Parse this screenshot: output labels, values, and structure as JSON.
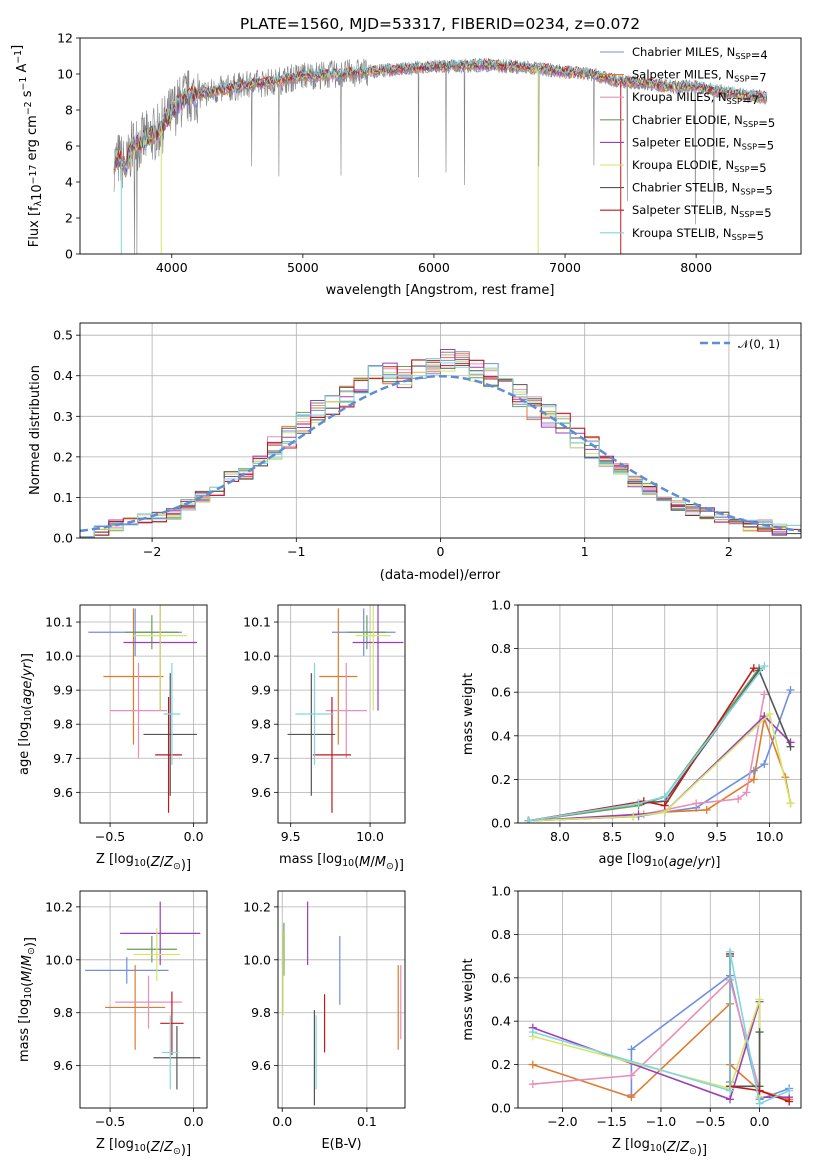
{
  "title": "PLATE=1560, MJD=53317, FIBERID=0234, z=0.072",
  "colors": {
    "Chabrier MILES": "#6f8fe0",
    "Salpeter MILES": "#e07b2d",
    "Kroupa MILES": "#e88fb8",
    "Chabrier ELODIE": "#6a9e5a",
    "Salpeter ELODIE": "#9b3fb8",
    "Kroupa ELODIE": "#d3e66b",
    "Chabrier STELIB": "#555555",
    "Salpeter STELIB": "#c0181c",
    "Kroupa STELIB": "#7fd6df",
    "data": "#808080",
    "normal": "#5b8ed6"
  },
  "chart_data": [
    {
      "type": "line",
      "title": "PLATE=1560, MJD=53317, FIBERID=0234, z=0.072",
      "xlabel": "wavelength [Angstrom, rest frame]",
      "ylabel": "Flux [f$_\\lambda$10$^{-17}$ erg cm$^{-2}$ s$^{-1}$ A$^{-1}$]",
      "xlim": [
        3300,
        8800
      ],
      "ylim": [
        0,
        12
      ],
      "xticks": [
        "4000",
        "5000",
        "6000",
        "7000",
        "8000"
      ],
      "yticks": [
        "0",
        "2",
        "4",
        "6",
        "8",
        "10",
        "12"
      ],
      "legend_placement": "top-right",
      "legend": [
        "Chabrier MILES, N_SSP=4",
        "Salpeter MILES, N_SSP=7",
        "Kroupa MILES, N_SSP=7",
        "Chabrier ELODIE, N_SSP=5",
        "Salpeter ELODIE, N_SSP=5",
        "Kroupa ELODIE, N_SSP=5",
        "Chabrier STELIB, N_SSP=5",
        "Salpeter STELIB, N_SSP=5",
        "Kroupa STELIB, N_SSP=5"
      ],
      "continuum": {
        "x": [
          3550,
          3600,
          3650,
          3700,
          3800,
          3900,
          4000,
          4100,
          4300,
          4500,
          4800,
          5000,
          5300,
          5600,
          6000,
          6400,
          6800,
          7000,
          7200,
          7400,
          7600,
          7800,
          8000,
          8200,
          8500
        ],
        "y": [
          5.0,
          5.3,
          4.8,
          6.0,
          6.4,
          6.8,
          7.9,
          8.7,
          9.0,
          9.3,
          9.6,
          9.9,
          10.0,
          10.2,
          10.4,
          10.5,
          10.3,
          10.1,
          10.0,
          9.6,
          9.5,
          9.3,
          9.3,
          9.0,
          8.7
        ]
      }
    },
    {
      "type": "bar",
      "xlabel": "(data-model)/error",
      "ylabel": "Normed distribution",
      "xlim": [
        -2.5,
        2.5
      ],
      "ylim": [
        0,
        0.53
      ],
      "xticks": [
        "−2",
        "−1",
        "0",
        "1",
        "2"
      ],
      "yticks": [
        "0.0",
        "0.1",
        "0.2",
        "0.3",
        "0.4",
        "0.5"
      ],
      "legend_placement": "top-right",
      "legend": [
        "N(0,1)"
      ],
      "bin_width": 0.1,
      "bin_start": -2.5,
      "mean_distribution": [
        0.01,
        0.02,
        0.03,
        0.04,
        0.05,
        0.05,
        0.06,
        0.08,
        0.1,
        0.12,
        0.15,
        0.16,
        0.19,
        0.22,
        0.25,
        0.28,
        0.31,
        0.33,
        0.35,
        0.37,
        0.41,
        0.41,
        0.4,
        0.41,
        0.43,
        0.44,
        0.43,
        0.41,
        0.4,
        0.38,
        0.35,
        0.32,
        0.3,
        0.28,
        0.25,
        0.22,
        0.19,
        0.17,
        0.14,
        0.12,
        0.1,
        0.08,
        0.07,
        0.06,
        0.05,
        0.04,
        0.03,
        0.03,
        0.02,
        0.02
      ]
    },
    {
      "type": "scatter",
      "xlabel": "Z [log$_{10}$(Z/Z$_\\odot$)]",
      "ylabel": "age  [log$_{10}$(age/yr)]",
      "xlim": [
        -0.68,
        0.08
      ],
      "ylim": [
        9.51,
        10.15
      ],
      "xticks": [
        "−0.5",
        "0.0"
      ],
      "yticks": [
        "9.6",
        "9.7",
        "9.8",
        "9.9",
        "10.0",
        "10.1"
      ],
      "points": [
        {
          "name": "Chabrier MILES",
          "x": -0.35,
          "y": 10.07,
          "xerr": 0.28,
          "yerr": 0.07
        },
        {
          "name": "Salpeter MILES",
          "x": -0.36,
          "y": 9.94,
          "xerr": 0.18,
          "yerr": 0.2
        },
        {
          "name": "Kroupa MILES",
          "x": -0.33,
          "y": 9.84,
          "xerr": 0.17,
          "yerr": 0.14
        },
        {
          "name": "Chabrier ELODIE",
          "x": -0.25,
          "y": 10.07,
          "xerr": 0.16,
          "yerr": 0.05
        },
        {
          "name": "Salpeter ELODIE",
          "x": -0.2,
          "y": 10.04,
          "xerr": 0.22,
          "yerr": 0.2
        },
        {
          "name": "Kroupa ELODIE",
          "x": -0.2,
          "y": 10.06,
          "xerr": 0.16,
          "yerr": 0.22
        },
        {
          "name": "Chabrier STELIB",
          "x": -0.14,
          "y": 9.77,
          "xerr": 0.16,
          "yerr": 0.18
        },
        {
          "name": "Salpeter STELIB",
          "x": -0.15,
          "y": 9.71,
          "xerr": 0.08,
          "yerr": 0.17
        },
        {
          "name": "Kroupa STELIB",
          "x": -0.13,
          "y": 9.83,
          "xerr": 0.05,
          "yerr": 0.15
        }
      ]
    },
    {
      "type": "scatter",
      "xlabel": "mass [log$_{10}$(M/M$_\\odot$)]",
      "xlim": [
        9.42,
        10.22
      ],
      "ylim": [
        9.51,
        10.15
      ],
      "xticks": [
        "9.5",
        "10.0"
      ],
      "yticks": [
        "9.6",
        "9.7",
        "9.8",
        "9.9",
        "10.0",
        "10.1"
      ],
      "points": [
        {
          "name": "Chabrier MILES",
          "x": 9.96,
          "y": 10.07,
          "xerr": 0.2,
          "yerr": 0.07
        },
        {
          "name": "Salpeter MILES",
          "x": 9.8,
          "y": 9.94,
          "xerr": 0.12,
          "yerr": 0.2
        },
        {
          "name": "Kroupa MILES",
          "x": 9.85,
          "y": 9.84,
          "xerr": 0.13,
          "yerr": 0.14
        },
        {
          "name": "Chabrier ELODIE",
          "x": 9.98,
          "y": 10.07,
          "xerr": 0.12,
          "yerr": 0.05
        },
        {
          "name": "Salpeter ELODIE",
          "x": 10.05,
          "y": 10.04,
          "xerr": 0.16,
          "yerr": 0.2
        },
        {
          "name": "Kroupa ELODIE",
          "x": 10.02,
          "y": 10.06,
          "xerr": 0.11,
          "yerr": 0.22
        },
        {
          "name": "Chabrier STELIB",
          "x": 9.63,
          "y": 9.77,
          "xerr": 0.15,
          "yerr": 0.18
        },
        {
          "name": "Salpeter STELIB",
          "x": 9.76,
          "y": 9.71,
          "xerr": 0.12,
          "yerr": 0.17
        },
        {
          "name": "Kroupa STELIB",
          "x": 9.65,
          "y": 9.83,
          "xerr": 0.12,
          "yerr": 0.15
        }
      ]
    },
    {
      "type": "line",
      "xlabel": "age  [log$_{10}$(age/yr)]",
      "ylabel": "mass weight",
      "xlim": [
        7.6,
        10.3
      ],
      "ylim": [
        0,
        1
      ],
      "xticks": [
        "8.0",
        "8.5",
        "9.0",
        "9.5",
        "10.0"
      ],
      "yticks": [
        "0.0",
        "0.2",
        "0.4",
        "0.6",
        "0.8",
        "1.0"
      ],
      "series": [
        {
          "name": "Chabrier MILES",
          "x": [
            7.7,
            8.75,
            9.0,
            9.3,
            9.85,
            9.95,
            10.2
          ],
          "y": [
            0.01,
            0.03,
            0.05,
            0.07,
            0.24,
            0.27,
            0.61
          ]
        },
        {
          "name": "Salpeter MILES",
          "x": [
            7.7,
            8.7,
            9.0,
            9.4,
            9.85,
            9.95,
            10.15,
            10.2
          ],
          "y": [
            0.01,
            0.03,
            0.05,
            0.06,
            0.2,
            0.48,
            0.21,
            0.09
          ]
        },
        {
          "name": "Kroupa MILES",
          "x": [
            7.7,
            8.8,
            9.3,
            9.7,
            9.78,
            9.95
          ],
          "y": [
            0.01,
            0.04,
            0.09,
            0.11,
            0.14,
            0.59
          ]
        },
        {
          "name": "Chabrier ELODIE",
          "x": [
            7.7,
            8.75,
            9.0,
            9.9
          ],
          "y": [
            0.01,
            0.08,
            0.12,
            0.71
          ]
        },
        {
          "name": "Salpeter ELODIE",
          "x": [
            7.7,
            8.75,
            9.0,
            9.95,
            10.2
          ],
          "y": [
            0.01,
            0.04,
            0.05,
            0.49,
            0.37
          ]
        },
        {
          "name": "Kroupa ELODIE",
          "x": [
            7.7,
            8.7,
            9.0,
            10.0,
            10.2
          ],
          "y": [
            0.01,
            0.03,
            0.05,
            0.5,
            0.09
          ]
        },
        {
          "name": "Chabrier STELIB",
          "x": [
            7.7,
            8.75,
            9.0,
            9.9,
            10.2
          ],
          "y": [
            0.01,
            0.09,
            0.1,
            0.7,
            0.35
          ]
        },
        {
          "name": "Salpeter STELIB",
          "x": [
            7.7,
            8.8,
            9.0,
            9.85
          ],
          "y": [
            0.01,
            0.1,
            0.08,
            0.71
          ]
        },
        {
          "name": "Kroupa STELIB",
          "x": [
            7.7,
            8.75,
            9.0,
            9.95
          ],
          "y": [
            0.01,
            0.09,
            0.12,
            0.72
          ]
        }
      ]
    },
    {
      "type": "scatter",
      "xlabel": "Z [log$_{10}$(Z/Z$_\\odot$)]",
      "ylabel": "mass [log$_{10}$(M/M$_\\odot$)]",
      "xlim": [
        -0.68,
        0.08
      ],
      "ylim": [
        9.44,
        10.26
      ],
      "xticks": [
        "−0.5",
        "0.0"
      ],
      "yticks": [
        "9.6",
        "9.8",
        "10.0",
        "10.2"
      ],
      "points": [
        {
          "name": "Chabrier MILES",
          "x": -0.4,
          "y": 9.96,
          "xerr": 0.25,
          "yerr": 0.05
        },
        {
          "name": "Salpeter MILES",
          "x": -0.35,
          "y": 9.82,
          "xerr": 0.18,
          "yerr": 0.16
        },
        {
          "name": "Kroupa MILES",
          "x": -0.27,
          "y": 9.84,
          "xerr": 0.2,
          "yerr": 0.1
        },
        {
          "name": "Chabrier ELODIE",
          "x": -0.25,
          "y": 10.04,
          "xerr": 0.15,
          "yerr": 0.05
        },
        {
          "name": "Salpeter ELODIE",
          "x": -0.2,
          "y": 10.1,
          "xerr": 0.24,
          "yerr": 0.12
        },
        {
          "name": "Kroupa ELODIE",
          "x": -0.22,
          "y": 10.02,
          "xerr": 0.14,
          "yerr": 0.1
        },
        {
          "name": "Chabrier STELIB",
          "x": -0.1,
          "y": 9.63,
          "xerr": 0.14,
          "yerr": 0.12
        },
        {
          "name": "Salpeter STELIB",
          "x": -0.13,
          "y": 9.76,
          "xerr": 0.07,
          "yerr": 0.12
        },
        {
          "name": "Kroupa STELIB",
          "x": -0.14,
          "y": 9.65,
          "xerr": 0.05,
          "yerr": 0.14
        }
      ]
    },
    {
      "type": "scatter",
      "xlabel": "E(B-V)",
      "xlim": [
        -0.005,
        0.145
      ],
      "ylim": [
        9.44,
        10.26
      ],
      "xticks": [
        "0.0",
        "0.1"
      ],
      "yticks": [
        "9.6",
        "9.8",
        "10.0",
        "10.2"
      ],
      "points": [
        {
          "name": "Chabrier MILES",
          "x": 0.068,
          "y": 9.96,
          "yerr": 0.13
        },
        {
          "name": "Salpeter MILES",
          "x": 0.137,
          "y": 9.82,
          "yerr": 0.16
        },
        {
          "name": "Kroupa MILES",
          "x": 0.14,
          "y": 9.84,
          "yerr": 0.14
        },
        {
          "name": "Chabrier ELODIE",
          "x": 0.002,
          "y": 10.04,
          "yerr": 0.1
        },
        {
          "name": "Salpeter ELODIE",
          "x": 0.03,
          "y": 10.1,
          "yerr": 0.12
        },
        {
          "name": "Kroupa ELODIE",
          "x": 0.001,
          "y": 9.95,
          "yerr": 0.16
        },
        {
          "name": "Chabrier STELIB",
          "x": 0.038,
          "y": 9.63,
          "yerr": 0.18
        },
        {
          "name": "Salpeter STELIB",
          "x": 0.05,
          "y": 9.76,
          "yerr": 0.11
        },
        {
          "name": "Kroupa STELIB",
          "x": 0.04,
          "y": 9.65,
          "yerr": 0.14
        }
      ]
    },
    {
      "type": "line",
      "xlabel": "Z [log$_{10}$(Z/Z$_\\odot$)]",
      "ylabel": "mass weight",
      "xlim": [
        -2.45,
        0.42
      ],
      "ylim": [
        0,
        1
      ],
      "xticks": [
        "−2.0",
        "−1.5",
        "−1.0",
        "−0.5",
        "0.0"
      ],
      "yticks": [
        "0.0",
        "0.2",
        "0.4",
        "0.6",
        "0.8",
        "1.0"
      ],
      "series": [
        {
          "name": "Chabrier MILES",
          "x": [
            -1.3,
            -1.3,
            -0.3,
            0.0,
            0.3
          ],
          "y": [
            0.06,
            0.27,
            0.61,
            0.04,
            0.09
          ]
        },
        {
          "name": "Salpeter MILES",
          "x": [
            -2.3,
            -1.3,
            -0.3,
            -0.3,
            0.0,
            0.3
          ],
          "y": [
            0.2,
            0.05,
            0.48,
            0.2,
            0.08,
            0.04
          ]
        },
        {
          "name": "Kroupa MILES",
          "x": [
            -2.3,
            -1.3,
            -0.3,
            0.0
          ],
          "y": [
            0.11,
            0.15,
            0.59,
            0.08
          ]
        },
        {
          "name": "Chabrier ELODIE",
          "x": [
            -0.3,
            -0.3
          ],
          "y": [
            0.71,
            0.12
          ]
        },
        {
          "name": "Salpeter ELODIE",
          "x": [
            -2.3,
            -0.3,
            0.0,
            0.0,
            0.3
          ],
          "y": [
            0.37,
            0.04,
            0.49,
            0.05,
            0.05
          ]
        },
        {
          "name": "Kroupa ELODIE",
          "x": [
            -2.3,
            -0.3,
            0.0,
            0.0
          ],
          "y": [
            0.33,
            0.09,
            0.5,
            0.05
          ]
        },
        {
          "name": "Chabrier STELIB",
          "x": [
            -0.3,
            -0.3,
            0.0,
            0.0
          ],
          "y": [
            0.7,
            0.1,
            0.1,
            0.35
          ]
        },
        {
          "name": "Salpeter STELIB",
          "x": [
            -0.3,
            -0.3,
            0.0,
            0.3
          ],
          "y": [
            0.71,
            0.1,
            0.08,
            0.03
          ]
        },
        {
          "name": "Kroupa STELIB",
          "x": [
            -2.3,
            -0.3,
            -0.3,
            0.0,
            0.3
          ],
          "y": [
            0.35,
            0.08,
            0.72,
            0.02,
            0.08
          ]
        }
      ]
    }
  ]
}
